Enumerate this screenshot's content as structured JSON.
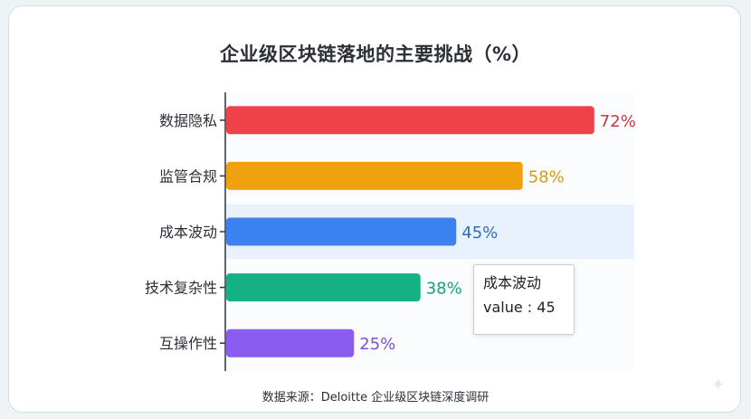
{
  "chart_data": {
    "type": "bar",
    "orientation": "horizontal",
    "title": "企业级区块链落地的主要挑战（%）",
    "categories": [
      "数据隐私",
      "监管合规",
      "成本波动",
      "技术复杂性",
      "互操作性"
    ],
    "values": [
      72,
      58,
      45,
      38,
      25
    ],
    "value_labels": [
      "72%",
      "58%",
      "45%",
      "38%",
      "25%"
    ],
    "colors": [
      "#ef4148",
      "#f0a10e",
      "#3b82f0",
      "#15b083",
      "#8b5cf0"
    ],
    "label_colors": [
      "#c9393f",
      "#d99a12",
      "#2f6fb8",
      "#16a078",
      "#7b50d8"
    ],
    "highlighted_category": "成本波动",
    "xlim": [
      0,
      100
    ],
    "grid": false,
    "legend": "none"
  },
  "tooltip": {
    "name": "成本波动",
    "value_text": "value : 45"
  },
  "source": "数据来源：Deloitte 企业级区块链深度调研"
}
